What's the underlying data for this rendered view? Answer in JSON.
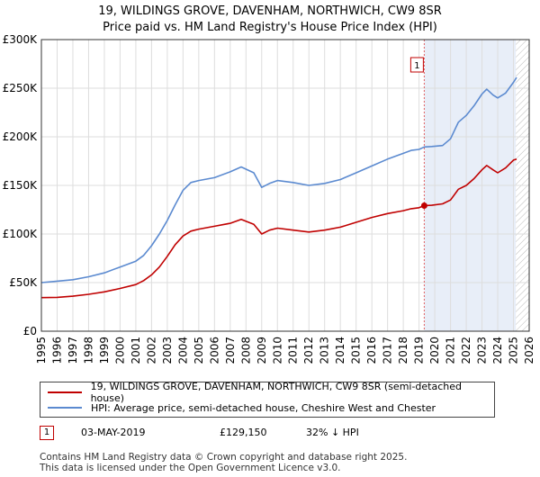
{
  "title_line1": "19, WILDINGS GROVE, DAVENHAM, NORTHWICH, CW9 8SR",
  "title_line2": "Price paid vs. HM Land Registry's House Price Index (HPI)",
  "chart_data": {
    "type": "line",
    "title": "19, WILDINGS GROVE, DAVENHAM, NORTHWICH, CW9 8SR — Price paid vs. HM Land Registry's House Price Index (HPI)",
    "xlabel": "",
    "ylabel": "",
    "xlim": [
      1995,
      2026
    ],
    "ylim": [
      0,
      300000
    ],
    "y_ticks": [
      0,
      50000,
      100000,
      150000,
      200000,
      250000,
      300000
    ],
    "y_tick_labels": [
      "£0",
      "£50K",
      "£100K",
      "£150K",
      "£200K",
      "£250K",
      "£300K"
    ],
    "x_ticks": [
      1995,
      1996,
      1997,
      1998,
      1999,
      2000,
      2001,
      2002,
      2003,
      2004,
      2005,
      2006,
      2007,
      2008,
      2009,
      2010,
      2011,
      2012,
      2013,
      2014,
      2015,
      2016,
      2017,
      2018,
      2019,
      2020,
      2021,
      2022,
      2023,
      2024,
      2025,
      2026
    ],
    "x_tick_labels": [
      "1995",
      "1996",
      "1997",
      "1998",
      "1999",
      "2000",
      "2001",
      "2002",
      "2003",
      "2004",
      "2005",
      "2006",
      "2007",
      "2008",
      "2009",
      "2010",
      "2011",
      "2012",
      "2013",
      "2014",
      "2015",
      "2016",
      "2017",
      "2018",
      "2019",
      "2020",
      "2021",
      "2022",
      "2023",
      "2024",
      "2025",
      "2026"
    ],
    "grid": true,
    "series": [
      {
        "name": "19, WILDINGS GROVE, DAVENHAM, NORTHWICH, CW9 8SR (semi-detached house)",
        "color": "#c00000",
        "x": [
          1995.0,
          1996.0,
          1997.0,
          1998.0,
          1999.0,
          2000.0,
          2001.0,
          2001.5,
          2002.0,
          2002.5,
          2003.0,
          2003.5,
          2004.0,
          2004.5,
          2005.0,
          2006.0,
          2007.0,
          2007.7,
          2008.5,
          2009.0,
          2009.5,
          2010.0,
          2011.0,
          2012.0,
          2013.0,
          2014.0,
          2015.0,
          2016.0,
          2017.0,
          2018.0,
          2018.5,
          2019.0,
          2019.33,
          2019.8,
          2020.5,
          2021.0,
          2021.5,
          2022.0,
          2022.5,
          2023.0,
          2023.3,
          2023.7,
          2024.0,
          2024.5,
          2025.0,
          2025.2
        ],
        "y": [
          34500,
          34800,
          36000,
          38000,
          40500,
          44000,
          48000,
          52000,
          58000,
          66000,
          77000,
          89000,
          98000,
          103000,
          105000,
          108000,
          111000,
          115000,
          110000,
          100000,
          104000,
          106000,
          104000,
          102000,
          104000,
          107000,
          112000,
          117000,
          121000,
          124000,
          126000,
          127000,
          129150,
          129500,
          131000,
          135000,
          146000,
          150000,
          157000,
          166000,
          170500,
          166000,
          163000,
          168000,
          176000,
          177000
        ]
      },
      {
        "name": "HPI: Average price, semi-detached house, Cheshire West and Chester",
        "color": "#5b8ad0",
        "x": [
          1995.0,
          1996.0,
          1997.0,
          1998.0,
          1999.0,
          2000.0,
          2001.0,
          2001.5,
          2002.0,
          2002.5,
          2003.0,
          2003.5,
          2004.0,
          2004.5,
          2005.0,
          2006.0,
          2007.0,
          2007.7,
          2008.5,
          2009.0,
          2009.5,
          2010.0,
          2011.0,
          2012.0,
          2013.0,
          2014.0,
          2015.0,
          2016.0,
          2017.0,
          2018.0,
          2018.5,
          2019.0,
          2019.33,
          2019.8,
          2020.5,
          2021.0,
          2021.5,
          2022.0,
          2022.5,
          2023.0,
          2023.3,
          2023.7,
          2024.0,
          2024.5,
          2025.0,
          2025.2
        ],
        "y": [
          50000,
          51500,
          53000,
          56000,
          60000,
          66000,
          72000,
          78000,
          88000,
          100000,
          114000,
          130000,
          145000,
          153000,
          155000,
          158000,
          164000,
          169000,
          163000,
          148000,
          152000,
          155000,
          153000,
          150000,
          152000,
          156000,
          163000,
          170000,
          177000,
          183000,
          186000,
          187000,
          189500,
          190000,
          191000,
          198000,
          215000,
          222000,
          232000,
          244000,
          249000,
          243000,
          240000,
          245000,
          256000,
          261000
        ]
      }
    ],
    "annotations": [
      {
        "label": "1",
        "x": 2019.33,
        "y": 129150
      }
    ],
    "sale_date_marker_x": 2019.33,
    "today_marker_x": 2025.15
  },
  "legend": {
    "series1_label": "19, WILDINGS GROVE, DAVENHAM, NORTHWICH, CW9 8SR (semi-detached house)",
    "series2_label": "HPI: Average price, semi-detached house, Cheshire West and Chester"
  },
  "transaction": {
    "number": "1",
    "date": "03-MAY-2019",
    "price": "£129,150",
    "hpi_diff": "32% ↓ HPI"
  },
  "footer": {
    "line1": "Contains HM Land Registry data © Crown copyright and database right 2025.",
    "line2": "This data is licensed under the Open Government Licence v3.0."
  },
  "colors": {
    "price_line": "#c00000",
    "hpi_line": "#5b8ad0",
    "grid": "#dddddd",
    "shade": "#e8eef8"
  }
}
